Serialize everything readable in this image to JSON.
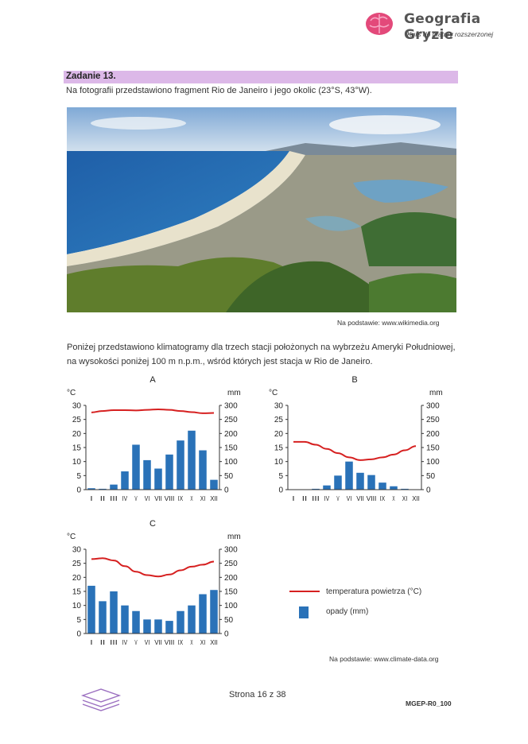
{
  "header": {
    "brand": "Geografia Gryzie",
    "tagline": "Kurs do matury rozszerzonej"
  },
  "task": {
    "title": "Zadanie 13.",
    "text": "Na fotografii przedstawiono fragment Rio de Janeiro i jego okolic (23°S, 43°W).",
    "photo_source": "Na podstawie: www.wikimedia.org",
    "intro": "Poniżej przedstawiono klimatogramy dla trzech stacji położonych na wybrzeżu Ameryki Południowej, na wysokości poniżej 100 m n.p.m., wśród których jest stacja w Rio de Janeiro."
  },
  "chart_data": [
    {
      "type": "bar",
      "title": "A",
      "categories": [
        "I",
        "II",
        "III",
        "IV",
        "V",
        "VI",
        "VII",
        "VIII",
        "IX",
        "X",
        "XI",
        "XII"
      ],
      "ylabel_left": "°C",
      "ylabel_right": "mm",
      "ylim_left": [
        0,
        30
      ],
      "ylim_right": [
        0,
        300
      ],
      "yticks_left": [
        0,
        5,
        10,
        15,
        20,
        25,
        30
      ],
      "yticks_right": [
        0,
        50,
        100,
        150,
        200,
        250,
        300
      ],
      "series": [
        {
          "name": "opady (mm)",
          "type": "bar",
          "axis": "right",
          "values": [
            5,
            3,
            18,
            65,
            160,
            105,
            75,
            125,
            175,
            210,
            140,
            35
          ]
        },
        {
          "name": "temperatura powietrza (°C)",
          "type": "line",
          "axis": "left",
          "values": [
            27.5,
            28,
            28.3,
            28.3,
            28.2,
            28.4,
            28.6,
            28.4,
            28,
            27.6,
            27.2,
            27.3
          ]
        }
      ]
    },
    {
      "type": "bar",
      "title": "B",
      "categories": [
        "I",
        "II",
        "III",
        "IV",
        "V",
        "VI",
        "VII",
        "VIII",
        "IX",
        "X",
        "XI",
        "XII"
      ],
      "ylabel_left": "°C",
      "ylabel_right": "mm",
      "ylim_left": [
        0,
        30
      ],
      "ylim_right": [
        0,
        300
      ],
      "yticks_left": [
        0,
        5,
        10,
        15,
        20,
        25,
        30
      ],
      "yticks_right": [
        0,
        50,
        100,
        150,
        200,
        250,
        300
      ],
      "series": [
        {
          "name": "opady (mm)",
          "type": "bar",
          "axis": "right",
          "values": [
            1,
            1,
            3,
            15,
            50,
            100,
            60,
            52,
            25,
            12,
            3,
            1
          ]
        },
        {
          "name": "temperatura powietrza (°C)",
          "type": "line",
          "axis": "left",
          "values": [
            17,
            17,
            16,
            14.5,
            13,
            11.5,
            10.5,
            10.8,
            11.5,
            12.5,
            14,
            15.5
          ]
        }
      ]
    },
    {
      "type": "bar",
      "title": "C",
      "categories": [
        "I",
        "II",
        "III",
        "IV",
        "V",
        "VI",
        "VII",
        "VIII",
        "IX",
        "X",
        "XI",
        "XII"
      ],
      "ylabel_left": "°C",
      "ylabel_right": "mm",
      "ylim_left": [
        0,
        30
      ],
      "ylim_right": [
        0,
        300
      ],
      "yticks_left": [
        0,
        5,
        10,
        15,
        20,
        25,
        30
      ],
      "yticks_right": [
        0,
        50,
        100,
        150,
        200,
        250,
        300
      ],
      "series": [
        {
          "name": "opady (mm)",
          "type": "bar",
          "axis": "right",
          "values": [
            170,
            115,
            150,
            100,
            80,
            50,
            50,
            45,
            80,
            100,
            140,
            155
          ]
        },
        {
          "name": "temperatura powietrza (°C)",
          "type": "line",
          "axis": "left",
          "values": [
            26.5,
            26.8,
            26,
            24,
            22,
            20.8,
            20.3,
            21,
            22.5,
            23.8,
            24.5,
            25.6
          ]
        }
      ]
    }
  ],
  "legend": {
    "temperature": "temperatura powietrza (°C)",
    "precipitation": "opady (mm)"
  },
  "colors": {
    "bar": "#2a72b8",
    "line": "#d62020",
    "task_bar": "#dcb8e8"
  },
  "footer": {
    "chart_source": "Na podstawie: www.climate-data.org",
    "page": "Strona 16 z 38",
    "code": "MGEP-R0_100"
  }
}
